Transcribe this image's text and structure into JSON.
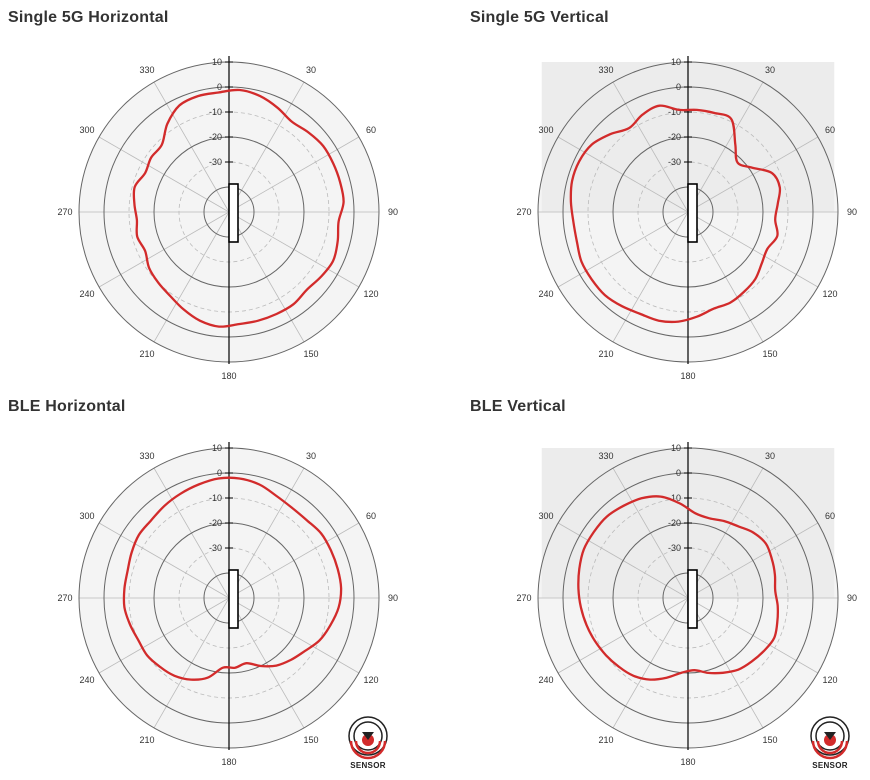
{
  "chart_data": [
    {
      "type": "line",
      "subtype": "polar",
      "title": "Single 5G Horizontal",
      "r_ticks": [
        10,
        0,
        -10,
        -20,
        -30
      ],
      "r_min": -50,
      "r_max": 10,
      "angle_ticks": [
        330,
        30,
        300,
        60,
        270,
        90,
        240,
        120,
        210,
        150,
        180
      ],
      "shaded_sector": "none",
      "series": [
        {
          "angles": [
            5,
            15,
            25,
            35,
            45,
            55,
            65,
            75,
            85,
            95,
            105,
            115,
            125,
            135,
            145,
            155,
            165,
            175,
            185,
            195,
            205,
            215,
            225,
            235,
            245,
            255,
            265,
            275,
            285,
            295,
            305,
            315,
            325,
            335,
            345,
            355
          ],
          "values": [
            -1,
            -2,
            -4,
            -6,
            -5,
            -4,
            -4,
            -4,
            -4,
            -6,
            -5,
            -4,
            -5,
            -6,
            -5,
            -5,
            -5,
            -5,
            -4,
            -5,
            -7,
            -9,
            -10,
            -11,
            -13,
            -12,
            -13,
            -12,
            -11,
            -13,
            -12,
            -12,
            -7,
            -3,
            -2,
            -2
          ]
        }
      ]
    },
    {
      "type": "line",
      "subtype": "polar",
      "title": "Single 5G Vertical",
      "r_ticks": [
        10,
        0,
        -10,
        -20,
        -30
      ],
      "r_min": -50,
      "r_max": 10,
      "angle_ticks": [
        330,
        30,
        300,
        60,
        270,
        90,
        240,
        120,
        210,
        150,
        180
      ],
      "shaded_sector": "upper",
      "series": [
        {
          "angles": [
            5,
            15,
            25,
            35,
            45,
            55,
            65,
            75,
            85,
            95,
            105,
            115,
            125,
            135,
            145,
            155,
            165,
            175,
            185,
            195,
            205,
            215,
            225,
            235,
            245,
            255,
            265,
            275,
            285,
            295,
            305,
            315,
            325,
            335,
            345,
            355
          ],
          "values": [
            -9,
            -9,
            -9,
            -17,
            -22,
            -19,
            -13,
            -12,
            -14,
            -15,
            -13,
            -15,
            -14,
            -12,
            -11,
            -10,
            -10,
            -8,
            -6,
            -5,
            -5,
            -4,
            -3,
            -3,
            -3,
            -4,
            -4,
            -3,
            -2,
            -2,
            -3,
            -6,
            -9,
            -7,
            -6,
            -9
          ]
        }
      ]
    },
    {
      "type": "line",
      "subtype": "polar",
      "title": "BLE Horizontal",
      "r_ticks": [
        10,
        0,
        -10,
        -20,
        -30
      ],
      "r_min": -50,
      "r_max": 10,
      "angle_ticks": [
        330,
        30,
        300,
        60,
        270,
        90,
        240,
        120,
        210,
        150,
        180
      ],
      "shaded_sector": "none",
      "series": [
        {
          "angles": [
            5,
            15,
            25,
            35,
            45,
            55,
            65,
            75,
            85,
            95,
            105,
            115,
            125,
            135,
            145,
            155,
            165,
            175,
            185,
            195,
            205,
            215,
            225,
            235,
            245,
            255,
            265,
            275,
            285,
            295,
            305,
            315,
            325,
            335,
            345,
            355
          ],
          "values": [
            -2,
            -3,
            -5,
            -6,
            -6,
            -5,
            -5,
            -5,
            -5,
            -6,
            -8,
            -10,
            -13,
            -15,
            -17,
            -20,
            -23,
            -22,
            -22,
            -17,
            -14,
            -12,
            -11,
            -10,
            -10,
            -9,
            -8,
            -8,
            -8,
            -7,
            -6,
            -6,
            -5,
            -4,
            -3,
            -2
          ]
        }
      ]
    },
    {
      "type": "line",
      "subtype": "polar",
      "title": "BLE Vertical",
      "r_ticks": [
        10,
        0,
        -10,
        -20,
        -30
      ],
      "r_min": -50,
      "r_max": 10,
      "angle_ticks": [
        330,
        30,
        300,
        60,
        270,
        90,
        240,
        120,
        210,
        150,
        180
      ],
      "shaded_sector": "upper",
      "series": [
        {
          "angles": [
            5,
            15,
            25,
            35,
            45,
            55,
            65,
            75,
            85,
            95,
            105,
            115,
            125,
            135,
            145,
            155,
            165,
            175,
            185,
            195,
            205,
            215,
            225,
            235,
            245,
            255,
            265,
            275,
            285,
            295,
            305,
            315,
            325,
            335,
            345,
            355
          ],
          "values": [
            -16,
            -17,
            -16,
            -15,
            -13,
            -12,
            -13,
            -14,
            -15,
            -14,
            -13,
            -12,
            -13,
            -14,
            -15,
            -17,
            -19,
            -21,
            -20,
            -17,
            -14,
            -12,
            -11,
            -10,
            -9,
            -8,
            -7,
            -6,
            -5,
            -4,
            -4,
            -4,
            -5,
            -6,
            -8,
            -12
          ]
        }
      ]
    }
  ],
  "logo": {
    "label": "SENSOR"
  },
  "colors": {
    "trace": "#d22b2b",
    "ring": "#666666",
    "grid": "#bbbbbb",
    "shade": "#f4f4f4"
  }
}
